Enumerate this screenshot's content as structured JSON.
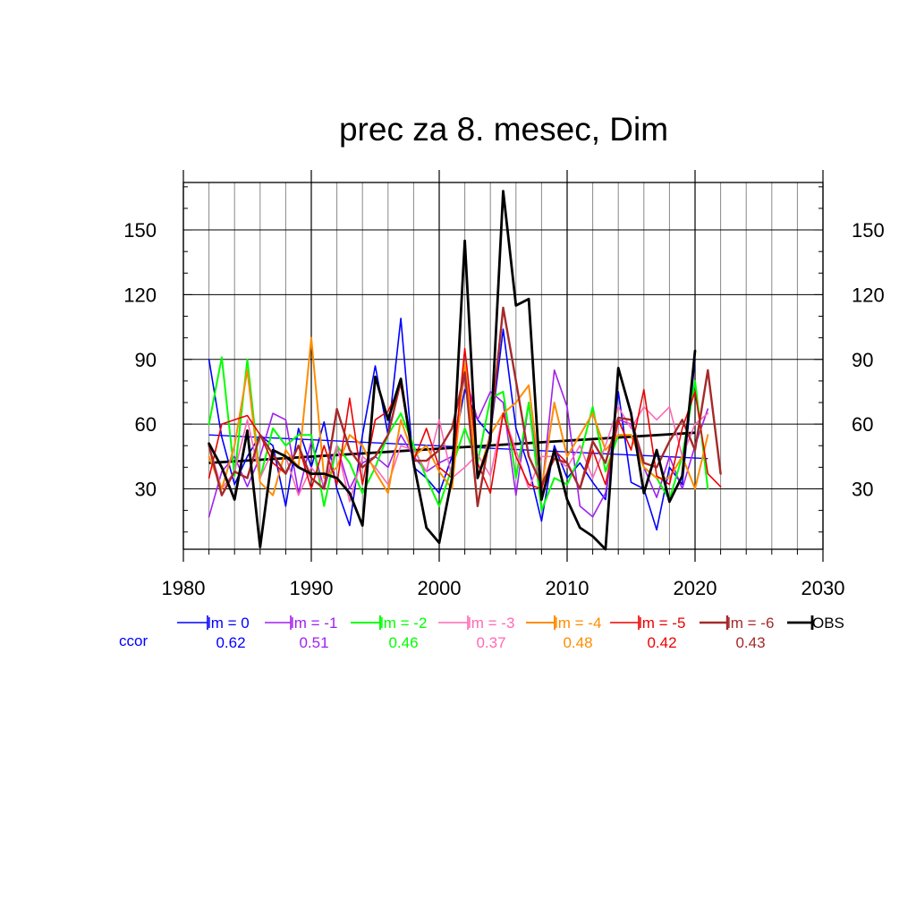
{
  "chart_data": {
    "type": "line",
    "title": "prec za 8. mesec, Dim",
    "xlabel": "",
    "ylabel": "",
    "xlim": [
      1980,
      2030
    ],
    "ylim": [
      2,
      172
    ],
    "x_ticks": [
      1980,
      1990,
      2000,
      2010,
      2020,
      2030
    ],
    "y_ticks": [
      30,
      60,
      90,
      120,
      150
    ],
    "grid": true,
    "legend_position": "bottom",
    "ccor_label": "ccor",
    "x": [
      1982,
      1983,
      1984,
      1985,
      1986,
      1987,
      1988,
      1989,
      1990,
      1991,
      1992,
      1993,
      1994,
      1995,
      1996,
      1997,
      1998,
      1999,
      2000,
      2001,
      2002,
      2003,
      2004,
      2005,
      2006,
      2007,
      2008,
      2009,
      2010,
      2011,
      2012,
      2013,
      2014,
      2015,
      2016,
      2017,
      2018,
      2019,
      2020,
      2021,
      2022
    ],
    "series": [
      {
        "name": "lm = 0",
        "ccor": "0.62",
        "color": "#0000ff",
        "width": 1.6,
        "values": [
          90,
          54,
          32,
          45,
          55,
          50,
          22,
          58,
          40,
          61,
          30,
          13,
          55,
          87,
          55,
          109,
          40,
          35,
          28,
          45,
          76,
          62,
          55,
          104,
          58,
          40,
          15,
          50,
          35,
          42,
          33,
          25,
          75,
          33,
          30,
          11,
          40,
          32,
          90,
          null,
          null
        ]
      },
      {
        "name": "lm = -1",
        "ccor": "0.51",
        "color": "#a020f0",
        "width": 1.6,
        "values": [
          17,
          38,
          45,
          31,
          45,
          65,
          62,
          28,
          52,
          30,
          50,
          30,
          42,
          45,
          40,
          55,
          45,
          38,
          42,
          45,
          83,
          62,
          75,
          70,
          27,
          70,
          28,
          85,
          68,
          22,
          17,
          28,
          62,
          60,
          40,
          26,
          45,
          30,
          50,
          67,
          null
        ]
      },
      {
        "name": "lm = -2",
        "ccor": "0.46",
        "color": "#00ff00",
        "width": 2.0,
        "values": [
          60,
          91,
          36,
          90,
          35,
          58,
          50,
          55,
          55,
          22,
          50,
          42,
          28,
          40,
          55,
          65,
          50,
          35,
          22,
          40,
          58,
          42,
          72,
          75,
          35,
          70,
          20,
          35,
          32,
          45,
          68,
          38,
          55,
          55,
          40,
          35,
          25,
          45,
          80,
          30,
          null
        ]
      },
      {
        "name": "lm = -3",
        "ccor": "0.37",
        "color": "#ff69b4",
        "width": 1.6,
        "values": [
          50,
          30,
          38,
          62,
          35,
          48,
          45,
          27,
          40,
          32,
          50,
          24,
          45,
          40,
          32,
          50,
          48,
          38,
          62,
          35,
          40,
          46,
          36,
          65,
          48,
          30,
          45,
          45,
          40,
          50,
          35,
          50,
          68,
          58,
          68,
          62,
          68,
          45,
          60,
          65,
          null
        ]
      },
      {
        "name": "lm = -4",
        "ccor": "0.48",
        "color": "#ff8c00",
        "width": 2.0,
        "values": [
          45,
          30,
          50,
          85,
          33,
          27,
          48,
          40,
          100,
          35,
          40,
          55,
          50,
          38,
          28,
          62,
          45,
          50,
          38,
          30,
          88,
          35,
          55,
          65,
          70,
          78,
          30,
          70,
          45,
          55,
          65,
          48,
          55,
          55,
          40,
          35,
          35,
          45,
          30,
          55,
          null
        ]
      },
      {
        "name": "lm = -5",
        "ccor": "0.42",
        "color": "#ee0000",
        "width": 1.6,
        "values": [
          35,
          60,
          62,
          64,
          55,
          42,
          37,
          50,
          30,
          50,
          32,
          72,
          32,
          62,
          66,
          78,
          43,
          58,
          40,
          35,
          95,
          42,
          28,
          65,
          45,
          32,
          30,
          48,
          42,
          30,
          48,
          32,
          62,
          48,
          76,
          36,
          32,
          58,
          75,
          37,
          31
        ]
      },
      {
        "name": "lm = -6",
        "ccor": "0.43",
        "color": "#a52a2a",
        "width": 2.4,
        "values": [
          50,
          27,
          38,
          35,
          55,
          46,
          37,
          50,
          35,
          30,
          67,
          48,
          40,
          45,
          55,
          80,
          43,
          43,
          48,
          58,
          84,
          22,
          56,
          114,
          80,
          45,
          32,
          44,
          42,
          30,
          52,
          42,
          63,
          62,
          42,
          40,
          52,
          62,
          48,
          85,
          37
        ]
      },
      {
        "name": "OBS",
        "ccor": "",
        "color": "#000000",
        "width": 2.8,
        "values": [
          51,
          40,
          25,
          57,
          3,
          48,
          45,
          40,
          37,
          37,
          35,
          28,
          13,
          82,
          62,
          81,
          42,
          12,
          5,
          35,
          145,
          35,
          52,
          168,
          115,
          118,
          25,
          48,
          25,
          12,
          8,
          2,
          86,
          65,
          28,
          48,
          24,
          36,
          94,
          null,
          null
        ]
      }
    ],
    "trend_lines": [
      {
        "series": "lm = 0",
        "color": "#0000ff",
        "width": 1.4,
        "x": [
          1982,
          2021
        ],
        "y": [
          55,
          44
        ]
      },
      {
        "series": "OBS",
        "color": "#000000",
        "width": 2.8,
        "x": [
          1982,
          2020
        ],
        "y": [
          42,
          56
        ]
      }
    ]
  }
}
